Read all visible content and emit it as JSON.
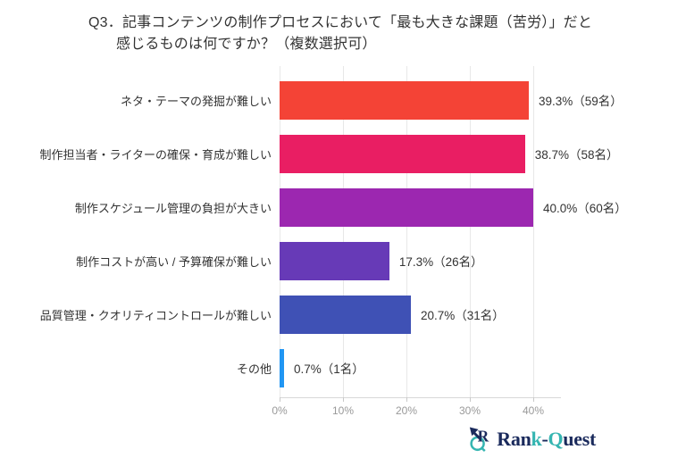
{
  "title": {
    "line1": "Q3．記事コンテンツの制作プロセスにおいて「最も大きな課題（苦労）」だと",
    "line2": "感じるものは何ですか？（複数選択可）"
  },
  "chart_data": {
    "type": "bar",
    "orientation": "horizontal",
    "title": "Q3．記事コンテンツの制作プロセスにおいて「最も大きな課題（苦労）」だと感じるものは何ですか？（複数選択可）",
    "categories": [
      "ネタ・テーマの発掘が難しい",
      "制作担当者・ライターの確保・育成が難しい",
      "制作スケジュール管理の負担が大きい",
      "制作コストが高い / 予算確保が難しい",
      "品質管理・クオリティコントロールが難しい",
      "その他"
    ],
    "values": [
      39.3,
      38.7,
      40.0,
      17.3,
      20.7,
      0.7
    ],
    "counts": [
      59,
      58,
      60,
      26,
      31,
      1
    ],
    "value_labels": [
      "39.3%（59名）",
      "38.7%（58名）",
      "40.0%（60名）",
      "17.3%（26名）",
      "20.7%（31名）",
      "0.7%（1名）"
    ],
    "bar_colors": [
      "#F44336",
      "#E91E63",
      "#9C27B0",
      "#673AB7",
      "#3F51B5",
      "#2196F3"
    ],
    "x_ticks": [
      {
        "label": "0%",
        "value": 0
      },
      {
        "label": "10%",
        "value": 10
      },
      {
        "label": "20%",
        "value": 20
      },
      {
        "label": "30%",
        "value": 30
      },
      {
        "label": "40%",
        "value": 40
      }
    ],
    "xlim": [
      0,
      44
    ],
    "xlabel": "",
    "ylabel": "",
    "grid": "vertical-light",
    "legend": "none"
  },
  "footer": {
    "brand_name": "Rank-Quest",
    "brand_segments": [
      {
        "text": "Ran",
        "color": "#1A2A5C"
      },
      {
        "text": "k",
        "color": "#35B5B1"
      },
      {
        "text": "-",
        "color": "#1A2A5C"
      },
      {
        "text": "Q",
        "color": "#35B5B1"
      },
      {
        "text": "uest",
        "color": "#1A2A5C"
      }
    ],
    "brand_colors": {
      "navy": "#1A2A5C",
      "teal": "#35B5B1"
    }
  }
}
